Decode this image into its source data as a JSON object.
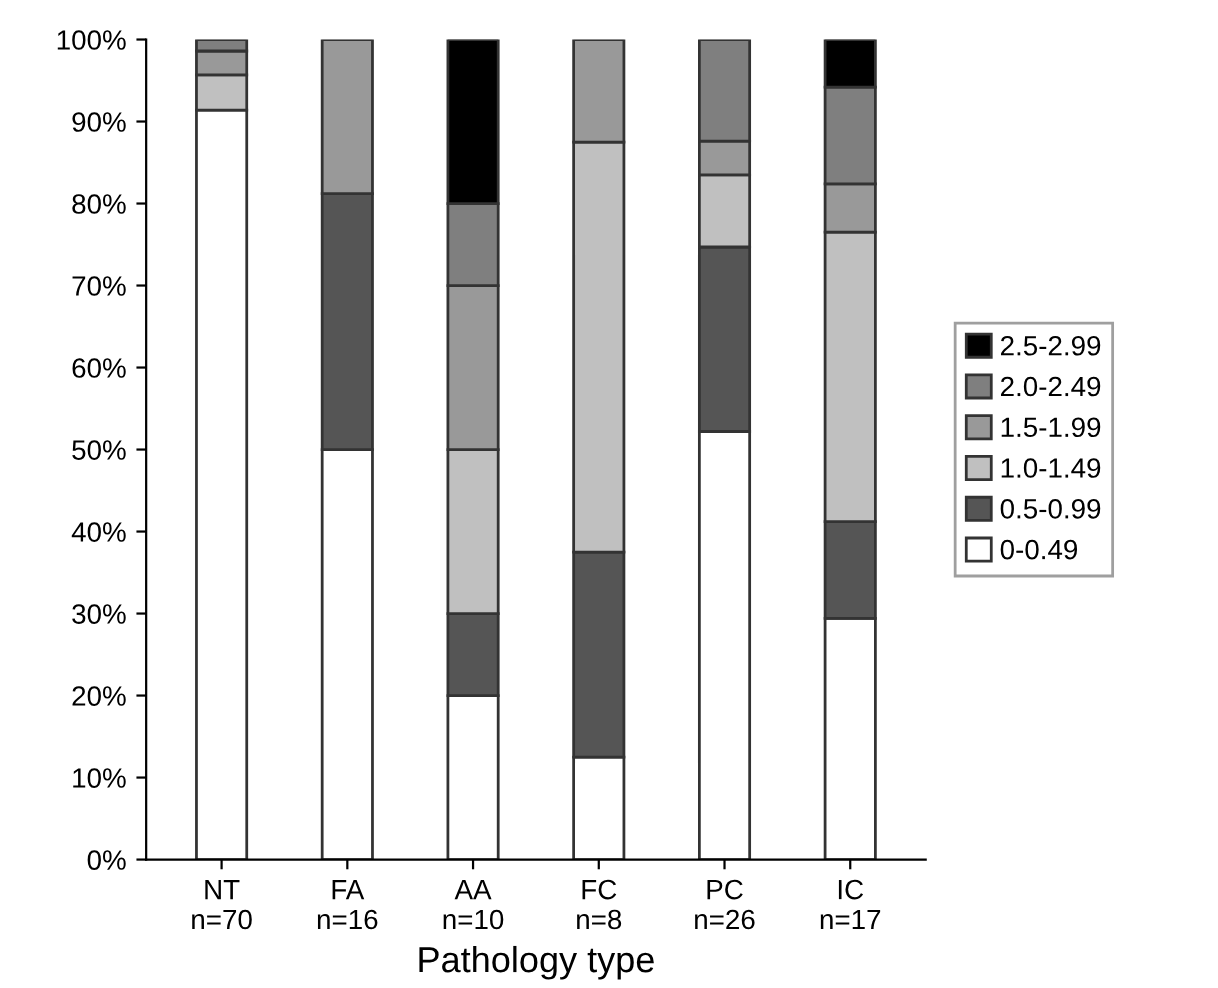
{
  "chart_data": {
    "type": "bar",
    "stacked": true,
    "xlabel": "Pathology type",
    "categories": [
      "NT\nn=70",
      "FA\nn=16",
      "AA\nn=10",
      "FC\nn=8",
      "PC\nn=26",
      "IC\nn=17"
    ],
    "series": [
      {
        "name": "0-0.49",
        "color": "#ffffff",
        "values": [
          91.4,
          50,
          20,
          12.5,
          52.2,
          29.4
        ]
      },
      {
        "name": "0.5-0.99",
        "color": "#555555",
        "values": [
          null,
          31.2,
          10,
          25,
          22.5,
          11.8
        ]
      },
      {
        "name": "1.0-1.49",
        "color": "#c0c0c0",
        "values": [
          4.3,
          null,
          20,
          50,
          8.8,
          35.3
        ]
      },
      {
        "name": "1.5-1.99",
        "color": "#999999",
        "values": [
          2.9,
          18.8,
          20,
          12.5,
          4.1,
          5.9
        ]
      },
      {
        "name": "2.0-2.49",
        "color": "#7f7f7f",
        "values": [
          1.4,
          null,
          10,
          null,
          12.4,
          11.8
        ]
      },
      {
        "name": "2.5-2.99",
        "color": "#000000",
        "values": [
          null,
          null,
          20,
          null,
          null,
          5.8
        ]
      }
    ],
    "ylim": [
      0,
      100
    ],
    "yticks": [
      {
        "value": 0,
        "label": "0%"
      },
      {
        "value": 10,
        "label": "10%"
      },
      {
        "value": 20,
        "label": "20%"
      },
      {
        "value": 30,
        "label": "30%"
      },
      {
        "value": 40,
        "label": "40%"
      },
      {
        "value": 50,
        "label": "50%"
      },
      {
        "value": 60,
        "label": "60%"
      },
      {
        "value": 70,
        "label": "70%"
      },
      {
        "value": 80,
        "label": "80%"
      },
      {
        "value": 90,
        "label": "90%"
      },
      {
        "value": 100,
        "label": "100%"
      }
    ],
    "grid": false,
    "legend": "right"
  }
}
